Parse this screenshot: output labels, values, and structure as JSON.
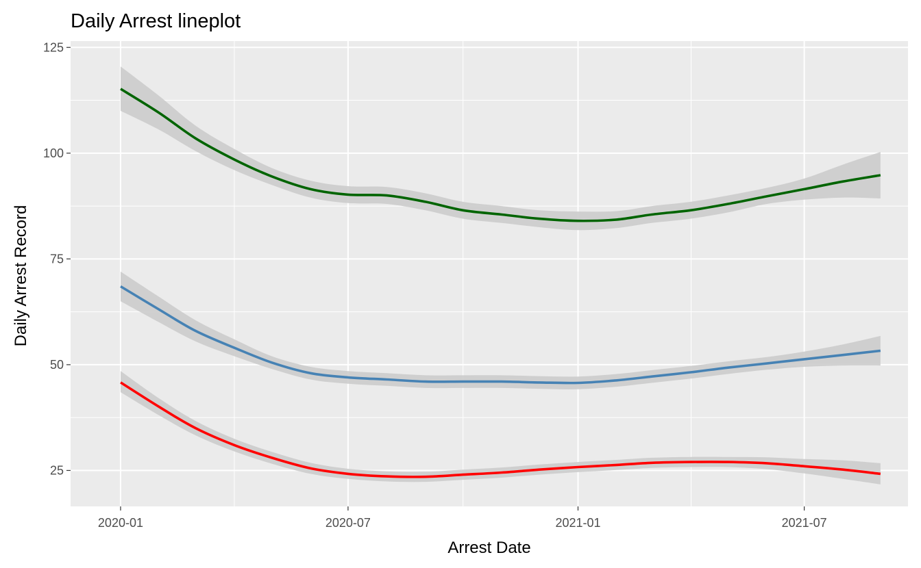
{
  "chart_data": {
    "type": "line",
    "title": "Daily Arrest lineplot",
    "xlabel": "Arrest Date",
    "ylabel": "Daily Arrest Record",
    "x_type": "date",
    "xlim": [
      "2019-11-22",
      "2021-09-22"
    ],
    "ylim": [
      16.5,
      126.5
    ],
    "x_ticks": [
      "2020-01-01",
      "2020-07-01",
      "2021-01-01",
      "2021-07-01"
    ],
    "x_tick_labels": [
      "2020-01",
      "2020-07",
      "2021-01",
      "2021-07"
    ],
    "y_ticks": [
      25,
      50,
      75,
      100,
      125
    ],
    "y_tick_labels": [
      "25",
      "50",
      "75",
      "100",
      "125"
    ],
    "grid": true,
    "legend": "none",
    "background": "#ebebeb",
    "band_color": "#cccccc",
    "x": [
      "2020-01-01",
      "2020-02-01",
      "2020-03-01",
      "2020-04-01",
      "2020-05-01",
      "2020-06-01",
      "2020-07-01",
      "2020-08-01",
      "2020-09-01",
      "2020-10-01",
      "2020-11-01",
      "2020-12-01",
      "2021-01-01",
      "2021-02-01",
      "2021-03-01",
      "2021-04-01",
      "2021-05-01",
      "2021-06-01",
      "2021-07-01",
      "2021-08-01",
      "2021-08-31"
    ],
    "series": [
      {
        "color": "#006400",
        "values": [
          115.2,
          109.5,
          103.5,
          98.5,
          94.5,
          91.5,
          90.2,
          90.0,
          88.5,
          86.5,
          85.5,
          84.5,
          84.0,
          84.3,
          85.5,
          86.5,
          88.0,
          89.8,
          91.5,
          93.3,
          94.8
        ],
        "lower": [
          110.0,
          105.5,
          100.5,
          96.0,
          92.5,
          89.5,
          88.2,
          88.0,
          86.5,
          84.5,
          83.5,
          82.5,
          81.8,
          82.3,
          83.5,
          84.5,
          86.0,
          88.0,
          89.0,
          89.5,
          89.3
        ],
        "upper": [
          120.5,
          113.5,
          106.5,
          101.0,
          96.5,
          93.5,
          92.2,
          92.0,
          90.5,
          88.5,
          87.5,
          86.5,
          86.2,
          86.3,
          87.5,
          88.5,
          90.0,
          91.8,
          94.0,
          97.3,
          100.3
        ]
      },
      {
        "color": "#4682b4",
        "values": [
          68.5,
          63.0,
          58.0,
          54.0,
          50.5,
          48.0,
          47.0,
          46.5,
          46.0,
          46.0,
          46.0,
          45.8,
          45.7,
          46.3,
          47.2,
          48.2,
          49.3,
          50.3,
          51.3,
          52.3,
          53.3
        ],
        "lower": [
          65.0,
          60.0,
          55.5,
          52.0,
          49.0,
          46.5,
          45.5,
          45.0,
          44.5,
          44.5,
          44.5,
          44.3,
          44.2,
          44.8,
          45.7,
          46.7,
          47.8,
          48.8,
          49.5,
          49.8,
          49.8
        ],
        "upper": [
          72.0,
          66.0,
          60.5,
          56.0,
          52.0,
          49.5,
          48.5,
          48.0,
          47.5,
          47.5,
          47.5,
          47.3,
          47.2,
          47.8,
          48.7,
          49.7,
          50.8,
          51.8,
          53.1,
          54.8,
          56.8
        ]
      },
      {
        "color": "#ff0000",
        "values": [
          45.8,
          40.0,
          35.0,
          31.0,
          28.0,
          25.5,
          24.2,
          23.6,
          23.5,
          24.0,
          24.5,
          25.2,
          25.8,
          26.3,
          26.8,
          27.0,
          27.0,
          26.7,
          26.0,
          25.2,
          24.2
        ],
        "lower": [
          43.5,
          38.0,
          33.3,
          29.5,
          26.6,
          24.2,
          23.0,
          22.4,
          22.3,
          22.8,
          23.3,
          24.0,
          24.6,
          25.1,
          25.6,
          25.8,
          25.8,
          25.3,
          24.3,
          23.0,
          21.7
        ],
        "upper": [
          48.5,
          42.0,
          36.7,
          32.5,
          29.4,
          26.8,
          25.4,
          24.8,
          24.7,
          25.2,
          25.7,
          26.4,
          27.0,
          27.5,
          28.0,
          28.2,
          28.2,
          28.1,
          27.7,
          27.4,
          26.7
        ]
      }
    ]
  }
}
